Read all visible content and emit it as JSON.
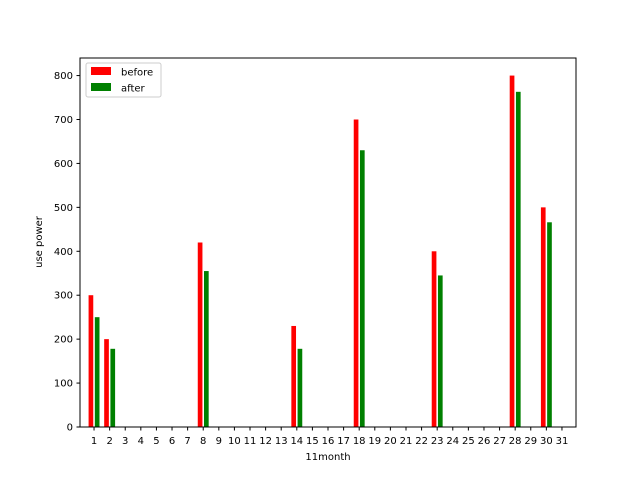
{
  "chart_data": {
    "type": "bar",
    "title": "",
    "xlabel": "11month",
    "ylabel": "use power",
    "categories": [
      "1",
      "2",
      "3",
      "4",
      "5",
      "6",
      "7",
      "8",
      "9",
      "10",
      "11",
      "12",
      "13",
      "14",
      "15",
      "16",
      "17",
      "18",
      "19",
      "20",
      "21",
      "22",
      "23",
      "24",
      "25",
      "26",
      "27",
      "28",
      "29",
      "30",
      "31"
    ],
    "series": [
      {
        "name": "before",
        "color": "#ff0000",
        "values": [
          300,
          200,
          0,
          0,
          0,
          0,
          0,
          420,
          0,
          0,
          0,
          0,
          0,
          230,
          0,
          0,
          0,
          700,
          0,
          0,
          0,
          0,
          400,
          0,
          0,
          0,
          0,
          800,
          0,
          500,
          0
        ]
      },
      {
        "name": "after",
        "color": "#008000",
        "values": [
          250,
          178,
          0,
          0,
          0,
          0,
          0,
          355,
          0,
          0,
          0,
          0,
          0,
          178,
          0,
          0,
          0,
          630,
          0,
          0,
          0,
          0,
          345,
          0,
          0,
          0,
          0,
          763,
          0,
          466,
          0
        ]
      }
    ],
    "ylim": [
      0,
      840
    ],
    "xlim": [
      0.1,
      31.9
    ],
    "yticks": [
      0,
      100,
      200,
      300,
      400,
      500,
      600,
      700,
      800
    ],
    "legend": "top-left",
    "grid": false
  }
}
